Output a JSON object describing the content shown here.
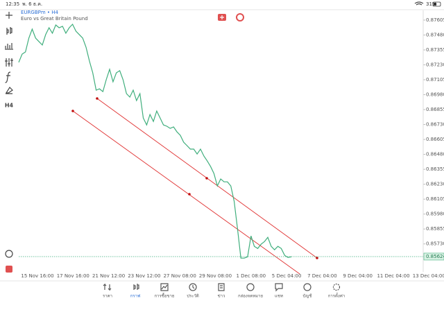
{
  "status_bar": {
    "time": "12:35",
    "date": "พ. 6 ธ.ค.",
    "battery": "31%"
  },
  "left_toolbar": {
    "timeframe": "H4"
  },
  "chart_data": {
    "type": "line",
    "title": "EURGBPm • H4",
    "subtitle": "Euro vs Great Britain Pound",
    "x_labels": [
      "15 Nov 16:00",
      "17 Nov 16:00",
      "21 Nov 12:00",
      "23 Nov 12:00",
      "27 Nov 08:00",
      "29 Nov 08:00",
      "1 Dec 08:00",
      "5 Dec 04:00",
      "7 Dec 04:00",
      "9 Dec 04:00",
      "11 Dec 04:00",
      "13 Dec 04:00"
    ],
    "series": [
      {
        "color": "#3fae7c",
        "values": [
          0.87251,
          0.8732,
          0.87338,
          0.87454,
          0.87529,
          0.87454,
          0.87425,
          0.87396,
          0.87483,
          0.87541,
          0.87495,
          0.87564,
          0.87541,
          0.87553,
          0.87495,
          0.87541,
          0.8757,
          0.87512,
          0.87483,
          0.87454,
          0.87378,
          0.87262,
          0.87163,
          0.87018,
          0.87029,
          0.87006,
          0.87105,
          0.87192,
          0.87088,
          0.87163,
          0.87181,
          0.87105,
          0.86989,
          0.8696,
          0.87018,
          0.86931,
          0.86989,
          0.86785,
          0.86727,
          0.86814,
          0.86756,
          0.86843,
          0.86785,
          0.86727,
          0.86716,
          0.86698,
          0.8671,
          0.86669,
          0.8664,
          0.86582,
          0.86553,
          0.86524,
          0.86524,
          0.86483,
          0.86524,
          0.86466,
          0.86425,
          0.86378,
          0.8632,
          0.86216,
          0.86274,
          0.8625,
          0.8625,
          0.86216,
          0.86088,
          0.85855,
          0.85611,
          0.85611,
          0.85622,
          0.85797,
          0.8571,
          0.85692,
          0.85727,
          0.8575,
          0.85785,
          0.8571,
          0.85681,
          0.8571,
          0.85692,
          0.85634,
          0.85617,
          0.85622
        ]
      }
    ],
    "ylim": [
      0.85496,
      0.87686
    ],
    "yticks": [
      0.87605,
      {
        "value": 0.8748,
        "label": "0.87480"
      },
      0.87355,
      {
        "value": 0.8723,
        "label": "0.87230"
      },
      0.87105,
      {
        "value": 0.8698,
        "label": "0.86980"
      },
      0.86855,
      {
        "value": 0.8673,
        "label": "0.86730"
      },
      0.86605,
      {
        "value": 0.8648,
        "label": "0.86480"
      },
      0.86355,
      {
        "value": 0.8623,
        "label": "0.86230"
      },
      0.86105,
      {
        "value": 0.8598,
        "label": "0.85980"
      },
      0.85855,
      {
        "value": 0.8573,
        "label": "0.85730"
      }
    ],
    "current_price": 0.85624,
    "grid": false
  },
  "tab_bar": {
    "tabs": [
      "ราคา",
      "กราฟ",
      "การซื้อขาย",
      "ประวัติ",
      "ข่าว",
      "กล่องจดหมาย",
      "แชท",
      "บัญชี",
      "การตั้งค่า"
    ],
    "active": 1
  }
}
